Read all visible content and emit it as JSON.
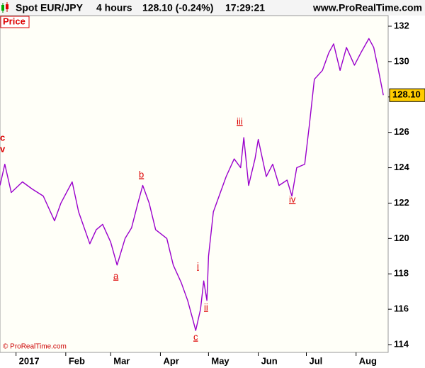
{
  "chart_data": {
    "type": "line",
    "header": [
      "Spot EUR/JPY",
      "4 hours",
      "128.10 (-0.24%)",
      "17:29:21"
    ],
    "site": "www.ProRealTime.com",
    "panel_label": "Price",
    "copyright": "© ProRealTime.com",
    "x": [
      -10,
      -7,
      -3,
      4,
      10,
      17,
      24,
      28,
      35,
      39,
      46,
      50,
      54,
      59,
      63,
      68,
      72,
      76,
      79,
      83,
      87,
      94,
      98,
      103,
      107,
      110,
      112,
      115,
      117,
      119,
      120,
      123,
      127,
      131,
      136,
      140,
      142,
      145,
      149,
      151,
      156,
      160,
      164,
      169,
      172,
      175,
      180,
      183,
      186,
      191,
      195,
      198,
      202,
      206,
      211,
      215,
      220,
      223,
      226,
      229
    ],
    "series": [
      {
        "name": "Spot EUR/JPY",
        "color": "#9a00cc",
        "values": [
          123.0,
          124.2,
          122.6,
          123.2,
          122.8,
          122.4,
          121.0,
          122.0,
          123.2,
          121.5,
          119.7,
          120.5,
          120.8,
          119.8,
          118.5,
          120.0,
          120.6,
          122.0,
          123.0,
          122.0,
          120.5,
          120.0,
          118.5,
          117.5,
          116.5,
          115.5,
          114.8,
          116.0,
          117.6,
          116.5,
          119.0,
          121.5,
          122.5,
          123.5,
          124.5,
          124.0,
          125.7,
          123.0,
          124.5,
          125.6,
          123.5,
          124.2,
          123.0,
          123.3,
          122.4,
          124.0,
          124.2,
          126.5,
          129.0,
          129.5,
          130.5,
          131.0,
          129.5,
          130.8,
          129.8,
          130.5,
          131.3,
          130.8,
          129.5,
          128.1
        ]
      }
    ],
    "last_price": {
      "value": 128.1,
      "label": "128.10"
    },
    "xlim": [
      -10,
      232
    ],
    "xticks": [
      {
        "value": 0,
        "label": "2017"
      },
      {
        "value": 31,
        "label": "Feb"
      },
      {
        "value": 59,
        "label": "Mar"
      },
      {
        "value": 90,
        "label": "Apr"
      },
      {
        "value": 120,
        "label": "May"
      },
      {
        "value": 151,
        "label": "Jun"
      },
      {
        "value": 181,
        "label": "Jul"
      },
      {
        "value": 212,
        "label": "Aug"
      }
    ],
    "ylim": [
      113.56,
      132.6
    ],
    "yticks": [
      114,
      116,
      118,
      120,
      122,
      124,
      126,
      128,
      130,
      132
    ],
    "annotations": [
      "a",
      "b",
      "c",
      "i",
      "ii",
      "iii",
      "iv",
      "c",
      "v"
    ]
  }
}
